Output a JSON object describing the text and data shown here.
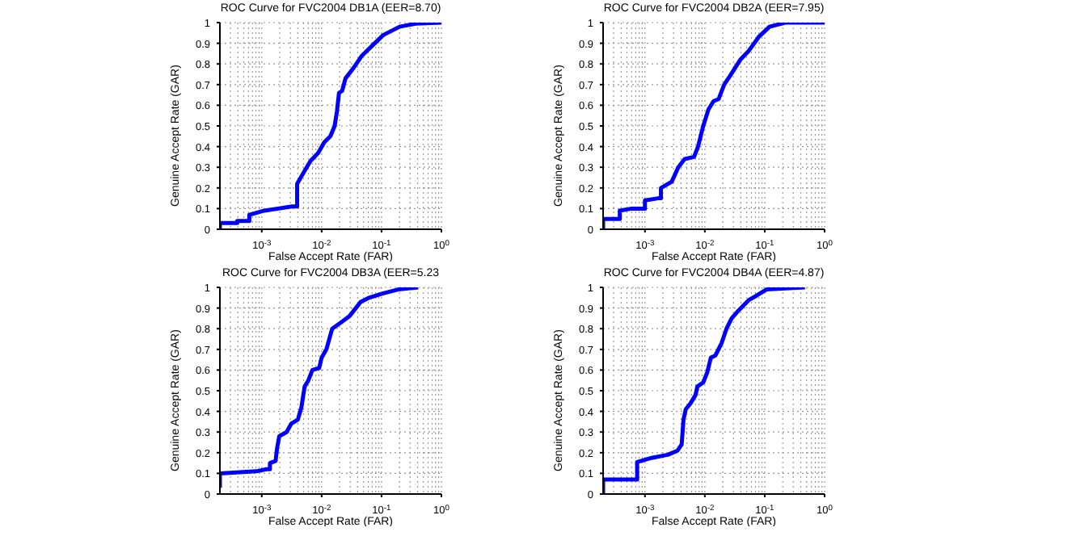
{
  "chart_data": [
    {
      "type": "line",
      "title": "ROC Curve for FVC2004 DB1A (EER=8.70)",
      "xlabel": "False Accept Rate (FAR)",
      "ylabel": "Genuine Accept Rate (GAR)",
      "log": "x",
      "grid": true,
      "line_style": "solid",
      "marker": "none",
      "xlim": [
        0.0002,
        1
      ],
      "xticks": [
        {
          "value": 0.001,
          "label": "10$^{-3}$"
        },
        {
          "value": 0.01,
          "label": "10$^{-2}$"
        },
        {
          "value": 0.1,
          "label": "10$^{-1}$"
        },
        {
          "value": 1,
          "label": "10$^{0}$"
        }
      ],
      "ylim": [
        0,
        1
      ],
      "yticks": [
        0,
        0.1,
        0.2,
        0.3,
        0.4,
        0.5,
        0.6,
        0.7,
        0.8,
        0.9,
        1
      ],
      "series": [
        {
          "color": "#0000ff",
          "x": [
            0.0002,
            0.0002,
            0.00039,
            0.00039,
            0.00062,
            0.00062,
            0.0011,
            0.0032,
            0.0039,
            0.0039,
            0.0049,
            0.0065,
            0.0088,
            0.011,
            0.014,
            0.0165,
            0.018,
            0.0195,
            0.022,
            0.025,
            0.034,
            0.047,
            0.071,
            0.107,
            0.2,
            0.37,
            1
          ],
          "values": [
            0,
            0.03,
            0.03,
            0.04,
            0.04,
            0.07,
            0.09,
            0.11,
            0.11,
            0.22,
            0.27,
            0.33,
            0.37,
            0.42,
            0.45,
            0.5,
            0.57,
            0.66,
            0.67,
            0.73,
            0.78,
            0.84,
            0.89,
            0.94,
            0.98,
            0.995,
            1
          ]
        }
      ]
    },
    {
      "type": "line",
      "title": "ROC Curve for FVC2004 DB2A (EER=7.95)",
      "xlabel": "False Accept Rate (FAR)",
      "ylabel": "Genuine Accept Rate (GAR)",
      "log": "x",
      "grid": true,
      "line_style": "solid",
      "marker": "none",
      "xlim": [
        0.0002,
        1
      ],
      "xticks": [
        {
          "value": 0.001,
          "label": "10$^{-3}$"
        },
        {
          "value": 0.01,
          "label": "10$^{-2}$"
        },
        {
          "value": 0.1,
          "label": "10$^{-1}$"
        },
        {
          "value": 1,
          "label": "10$^{0}$"
        }
      ],
      "ylim": [
        0,
        1
      ],
      "yticks": [
        0,
        0.1,
        0.2,
        0.3,
        0.4,
        0.5,
        0.6,
        0.7,
        0.8,
        0.9,
        1
      ],
      "series": [
        {
          "color": "#0000ff",
          "x": [
            0.0002,
            0.0002,
            0.00038,
            0.00038,
            0.0006,
            0.001,
            0.001,
            0.00166,
            0.00185,
            0.00185,
            0.0028,
            0.0036,
            0.0046,
            0.0066,
            0.0077,
            0.0085,
            0.0094,
            0.0115,
            0.014,
            0.017,
            0.021,
            0.026,
            0.039,
            0.053,
            0.079,
            0.12,
            0.22,
            1
          ],
          "values": [
            0,
            0.05,
            0.05,
            0.09,
            0.1,
            0.1,
            0.14,
            0.15,
            0.15,
            0.2,
            0.23,
            0.3,
            0.34,
            0.35,
            0.4,
            0.45,
            0.5,
            0.58,
            0.62,
            0.63,
            0.7,
            0.74,
            0.82,
            0.86,
            0.93,
            0.98,
            1,
            1
          ]
        }
      ]
    },
    {
      "type": "line",
      "title": "ROC Curve for FVC2004 DB3A (EER=5.23",
      "xlabel": "False Accept Rate (FAR)",
      "ylabel": "Genuine Accept Rate (GAR)",
      "log": "x",
      "grid": true,
      "line_style": "solid",
      "marker": "none",
      "xlim": [
        0.0002,
        1
      ],
      "xticks": [
        {
          "value": 0.001,
          "label": "10$^{-3}$"
        },
        {
          "value": 0.01,
          "label": "10$^{-2}$"
        },
        {
          "value": 0.1,
          "label": "10$^{-1}$"
        },
        {
          "value": 1,
          "label": "10$^{0}$"
        }
      ],
      "ylim": [
        0,
        1
      ],
      "yticks": [
        0,
        0.1,
        0.2,
        0.3,
        0.4,
        0.5,
        0.6,
        0.7,
        0.8,
        0.9,
        1
      ],
      "series": [
        {
          "color": "#0000ff",
          "x": [
            0.0002,
            0.0002,
            0.00081,
            0.0012,
            0.00137,
            0.00137,
            0.0017,
            0.0018,
            0.00196,
            0.0026,
            0.0031,
            0.004,
            0.0046,
            0.0052,
            0.006,
            0.007,
            0.0091,
            0.01,
            0.012,
            0.015,
            0.021,
            0.029,
            0.045,
            0.062,
            0.104,
            0.19,
            0.41
          ],
          "values": [
            0.03,
            0.1,
            0.11,
            0.12,
            0.12,
            0.15,
            0.16,
            0.22,
            0.28,
            0.3,
            0.34,
            0.36,
            0.42,
            0.52,
            0.55,
            0.6,
            0.61,
            0.66,
            0.7,
            0.8,
            0.83,
            0.86,
            0.93,
            0.95,
            0.97,
            0.99,
            1
          ]
        }
      ]
    },
    {
      "type": "line",
      "title": "ROC Curve for FVC2004 DB4A (EER=4.87)",
      "xlabel": "False Accept Rate (FAR)",
      "ylabel": "Genuine Accept Rate (GAR)",
      "log": "x",
      "grid": true,
      "line_style": "solid",
      "marker": "none",
      "xlim": [
        0.0002,
        1
      ],
      "xticks": [
        {
          "value": 0.001,
          "label": "10$^{-3}$"
        },
        {
          "value": 0.01,
          "label": "10$^{-2}$"
        },
        {
          "value": 0.1,
          "label": "10$^{-1}$"
        },
        {
          "value": 1,
          "label": "10$^{0}$"
        }
      ],
      "ylim": [
        0,
        1
      ],
      "yticks": [
        0,
        0.1,
        0.2,
        0.3,
        0.4,
        0.5,
        0.6,
        0.7,
        0.8,
        0.9,
        1
      ],
      "series": [
        {
          "color": "#0000ff",
          "x": [
            0.0002,
            0.0002,
            0.00074,
            0.00074,
            0.0013,
            0.0024,
            0.0035,
            0.0041,
            0.0044,
            0.0048,
            0.0058,
            0.007,
            0.0075,
            0.0094,
            0.011,
            0.0126,
            0.015,
            0.019,
            0.023,
            0.028,
            0.037,
            0.055,
            0.073,
            0.107,
            0.47
          ],
          "values": [
            0,
            0.07,
            0.07,
            0.155,
            0.175,
            0.19,
            0.21,
            0.24,
            0.36,
            0.41,
            0.44,
            0.48,
            0.52,
            0.54,
            0.59,
            0.66,
            0.67,
            0.73,
            0.8,
            0.85,
            0.89,
            0.94,
            0.96,
            0.99,
            1
          ]
        }
      ]
    }
  ]
}
